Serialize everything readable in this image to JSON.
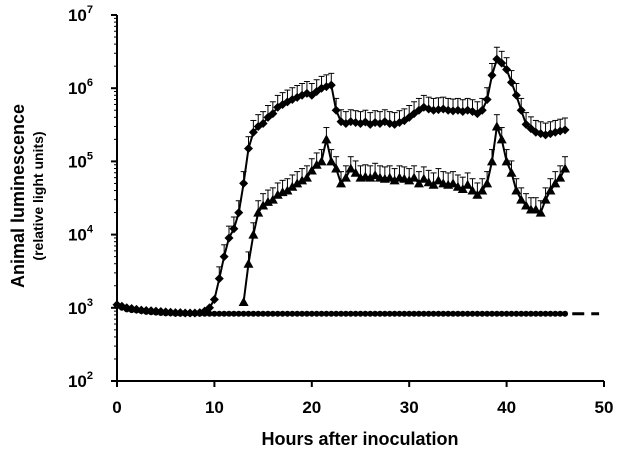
{
  "chart_data": {
    "type": "line",
    "title": "",
    "xlabel": "Hours after inoculation",
    "ylabel": "Animal luminescence",
    "ylabel_sub": "(relative light units)",
    "xlim": [
      0,
      50
    ],
    "ylim": [
      100,
      10000000
    ],
    "y_scale": "log",
    "grid": false,
    "legend": "none",
    "x_ticks": [
      "0",
      "10",
      "20",
      "30",
      "40",
      "50"
    ],
    "y_ticks": [
      {
        "base": "10",
        "exp": "2"
      },
      {
        "base": "10",
        "exp": "3"
      },
      {
        "base": "10",
        "exp": "4"
      },
      {
        "base": "10",
        "exp": "5"
      },
      {
        "base": "10",
        "exp": "6"
      },
      {
        "base": "10",
        "exp": "7"
      }
    ],
    "series": [
      {
        "marker": "diamond",
        "color": "#000000",
        "x": [
          0,
          0.5,
          1,
          1.5,
          2,
          2.5,
          3,
          3.5,
          4,
          4.5,
          5,
          5.5,
          6,
          6.5,
          7,
          7.5,
          8,
          8.5,
          9,
          9.5,
          10,
          10.5,
          11,
          11.5,
          12,
          12.5,
          13,
          13.5,
          14,
          14.5,
          15,
          15.5,
          16,
          16.5,
          17,
          17.5,
          18,
          18.5,
          19,
          19.5,
          20,
          20.5,
          21,
          21.5,
          22,
          22.5,
          23,
          23.5,
          24,
          24.5,
          25,
          25.5,
          26,
          26.5,
          27,
          27.5,
          28,
          28.5,
          29,
          29.5,
          30,
          30.5,
          31,
          31.5,
          32,
          32.5,
          33,
          33.5,
          34,
          34.5,
          35,
          35.5,
          36,
          36.5,
          37,
          37.5,
          38,
          38.5,
          39,
          39.5,
          40,
          40.5,
          41,
          41.5,
          42,
          42.5,
          43,
          43.5,
          44,
          44.5,
          45,
          45.5,
          46
        ],
        "y": [
          1100,
          1050,
          1000,
          980,
          950,
          930,
          920,
          910,
          900,
          890,
          880,
          870,
          860,
          860,
          850,
          850,
          850,
          860,
          900,
          1000,
          1300,
          2500,
          5000,
          9000,
          12000,
          20000,
          50000,
          150000,
          250000,
          300000,
          330000,
          400000,
          450000,
          550000,
          600000,
          650000,
          700000,
          750000,
          800000,
          850000,
          800000,
          900000,
          1000000,
          1050000,
          1100000,
          500000,
          350000,
          330000,
          350000,
          340000,
          330000,
          345000,
          320000,
          340000,
          330000,
          350000,
          330000,
          320000,
          340000,
          360000,
          400000,
          450000,
          500000,
          550000,
          520000,
          500000,
          510000,
          520000,
          500000,
          490000,
          500000,
          480000,
          500000,
          480000,
          450000,
          500000,
          700000,
          1500000,
          2500000,
          2200000,
          1800000,
          1200000,
          800000,
          500000,
          320000,
          280000,
          250000,
          240000,
          230000,
          240000,
          250000,
          260000,
          270000
        ]
      },
      {
        "marker": "triangle",
        "color": "#000000",
        "x": [
          13,
          13.5,
          14,
          14.5,
          15,
          15.5,
          16,
          16.5,
          17,
          17.5,
          18,
          18.5,
          19,
          19.5,
          20,
          20.5,
          21,
          21.5,
          22,
          22.5,
          23,
          23.5,
          24,
          24.5,
          25,
          25.5,
          26,
          26.5,
          27,
          27.5,
          28,
          28.5,
          29,
          29.5,
          30,
          30.5,
          31,
          31.5,
          32,
          32.5,
          33,
          33.5,
          34,
          34.5,
          35,
          35.5,
          36,
          36.5,
          37,
          37.5,
          38,
          38.5,
          39,
          39.5,
          40,
          40.5,
          41,
          41.5,
          42,
          42.5,
          43,
          43.5,
          44,
          44.5,
          45,
          45.5,
          46
        ],
        "y": [
          1200,
          4000,
          10000,
          20000,
          25000,
          28000,
          30000,
          35000,
          38000,
          40000,
          45000,
          50000,
          55000,
          60000,
          75000,
          90000,
          100000,
          200000,
          100000,
          80000,
          50000,
          60000,
          80000,
          70000,
          60000,
          62000,
          60000,
          65000,
          60000,
          58000,
          60000,
          55000,
          60000,
          58000,
          55000,
          60000,
          50000,
          58000,
          52000,
          48000,
          55000,
          50000,
          48000,
          50000,
          45000,
          42000,
          48000,
          40000,
          35000,
          40000,
          50000,
          100000,
          300000,
          200000,
          100000,
          70000,
          40000,
          30000,
          25000,
          22000,
          22000,
          20000,
          30000,
          40000,
          50000,
          60000,
          80000
        ]
      },
      {
        "marker": "circle-dashed",
        "color": "#000000",
        "x": [
          0,
          0.5,
          1,
          1.5,
          2,
          2.5,
          3,
          3.5,
          4,
          4.5,
          5,
          5.5,
          6,
          6.5,
          7,
          7.5,
          8,
          8.5,
          9,
          9.5,
          10,
          10.5,
          11,
          11.5,
          12,
          12.5,
          13,
          13.5,
          14,
          14.5,
          15,
          15.5,
          16,
          16.5,
          17,
          17.5,
          18,
          18.5,
          19,
          19.5,
          20,
          20.5,
          21,
          21.5,
          22,
          22.5,
          23,
          23.5,
          24,
          24.5,
          25,
          25.5,
          26,
          26.5,
          27,
          27.5,
          28,
          28.5,
          29,
          29.5,
          30,
          30.5,
          31,
          31.5,
          32,
          32.5,
          33,
          33.5,
          34,
          34.5,
          35,
          35.5,
          36,
          36.5,
          37,
          37.5,
          38,
          38.5,
          39,
          39.5,
          40,
          40.5,
          41,
          41.5,
          42,
          42.5,
          43,
          43.5,
          44,
          44.5,
          45,
          45.5,
          46,
          46.5,
          47,
          47.5,
          48,
          48.5,
          49,
          49.5
        ],
        "y": [
          1050,
          1000,
          950,
          930,
          920,
          900,
          880,
          870,
          860,
          850,
          840,
          840,
          830,
          830,
          830,
          830,
          830,
          830,
          830,
          830,
          830,
          830,
          830,
          830,
          830,
          830,
          830,
          830,
          830,
          830,
          830,
          830,
          830,
          830,
          830,
          830,
          830,
          830,
          830,
          830,
          830,
          830,
          830,
          830,
          830,
          830,
          830,
          830,
          830,
          830,
          830,
          830,
          830,
          830,
          830,
          830,
          830,
          830,
          830,
          830,
          830,
          830,
          830,
          830,
          830,
          830,
          830,
          830,
          830,
          830,
          830,
          830,
          830,
          830,
          830,
          830,
          830,
          830,
          830,
          830,
          830,
          830,
          830,
          830,
          830,
          830,
          830,
          830,
          830,
          830,
          830,
          830,
          830,
          830,
          830,
          830,
          830,
          830,
          830,
          830
        ]
      }
    ]
  }
}
